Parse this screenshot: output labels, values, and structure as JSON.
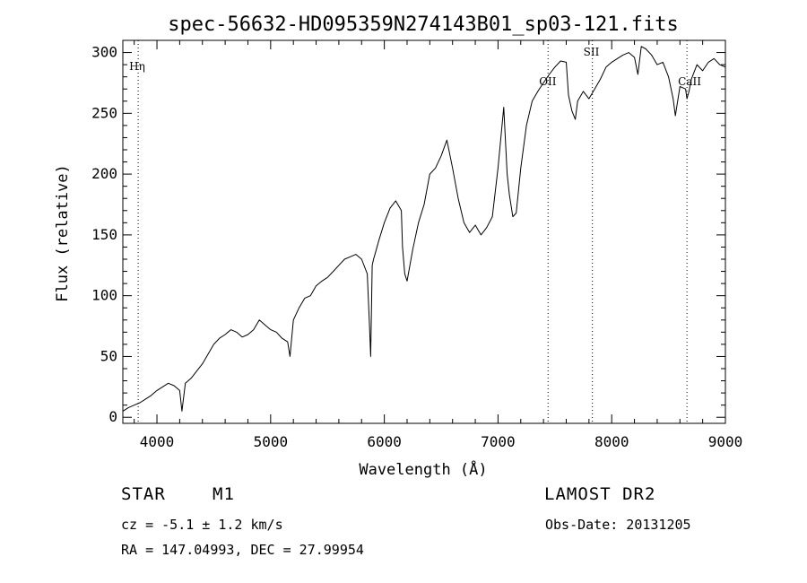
{
  "chart_data": {
    "type": "line",
    "title": "spec-56632-HD095359N274143B01_sp03-121.fits",
    "xlabel": "Wavelength (Å)",
    "ylabel": "Flux (relative)",
    "xlim": [
      3700,
      9000
    ],
    "ylim": [
      -5,
      310
    ],
    "xticks": [
      4000,
      5000,
      6000,
      7000,
      8000,
      9000
    ],
    "yticks": [
      0,
      50,
      100,
      150,
      200,
      250,
      300
    ],
    "grid": false,
    "line_color": "#000000",
    "series": [
      {
        "x": [
          3700,
          3750,
          3800,
          3850,
          3900,
          3950,
          4000,
          4050,
          4100,
          4150,
          4200,
          4220,
          4250,
          4300,
          4350,
          4400,
          4450,
          4500,
          4550,
          4600,
          4650,
          4700,
          4750,
          4800,
          4850,
          4900,
          4950,
          5000,
          5050,
          5100,
          5150,
          5170,
          5200,
          5250,
          5300,
          5350,
          5400,
          5450,
          5500,
          5550,
          5600,
          5650,
          5700,
          5750,
          5800,
          5850,
          5870,
          5880,
          5893,
          5905,
          5930,
          5950,
          6000,
          6050,
          6100,
          6150,
          6160,
          6180,
          6200,
          6250,
          6300,
          6350,
          6400,
          6450,
          6500,
          6550,
          6600,
          6650,
          6700,
          6750,
          6800,
          6850,
          6900,
          6950,
          7000,
          7050,
          7080,
          7100,
          7130,
          7160,
          7200,
          7250,
          7300,
          7350,
          7400,
          7450,
          7500,
          7550,
          7600,
          7620,
          7650,
          7680,
          7700,
          7750,
          7800,
          7850,
          7900,
          7950,
          8000,
          8050,
          8100,
          8150,
          8200,
          8230,
          8260,
          8300,
          8350,
          8400,
          8450,
          8500,
          8540,
          8560,
          8600,
          8650,
          8662,
          8680,
          8700,
          8750,
          8800,
          8850,
          8900,
          8950,
          9000
        ],
        "y": [
          5,
          8,
          10,
          12,
          15,
          18,
          22,
          25,
          28,
          26,
          22,
          5,
          28,
          32,
          38,
          44,
          52,
          60,
          65,
          68,
          72,
          70,
          66,
          68,
          72,
          80,
          76,
          72,
          70,
          65,
          62,
          50,
          80,
          90,
          98,
          100,
          108,
          112,
          115,
          120,
          125,
          130,
          132,
          134,
          130,
          118,
          75,
          50,
          125,
          130,
          138,
          145,
          160,
          172,
          178,
          170,
          140,
          118,
          112,
          138,
          160,
          175,
          200,
          205,
          215,
          228,
          205,
          180,
          160,
          152,
          158,
          150,
          156,
          165,
          205,
          255,
          200,
          183,
          165,
          168,
          205,
          240,
          260,
          268,
          275,
          282,
          288,
          293,
          292,
          265,
          252,
          245,
          260,
          268,
          262,
          270,
          278,
          288,
          292,
          295,
          298,
          300,
          296,
          282,
          305,
          303,
          298,
          290,
          292,
          280,
          262,
          248,
          272,
          270,
          262,
          268,
          278,
          290,
          285,
          292,
          295,
          290,
          288
        ]
      }
    ],
    "line_markers": [
      {
        "label": "Hη",
        "x": 3835
      },
      {
        "label": "OII",
        "x": 7440
      },
      {
        "label": "SII",
        "x": 7830
      },
      {
        "label": "CaII",
        "x": 8662
      }
    ]
  },
  "info": {
    "object_class": "STAR",
    "subclass": "M1",
    "survey": "LAMOST DR2",
    "redshift": "cz = -5.1 ± 1.2 km/s",
    "obs_date": "Obs-Date: 20131205",
    "coordinates": "RA = 147.04993, DEC =  27.99954"
  }
}
